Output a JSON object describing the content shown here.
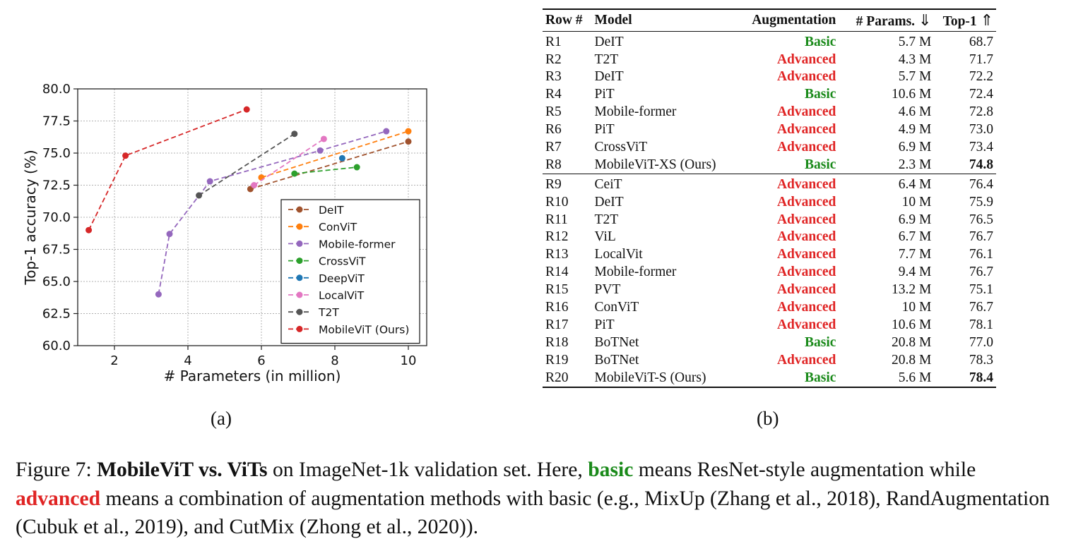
{
  "chart_data": {
    "type": "line",
    "xlabel": "# Parameters (in million)",
    "ylabel": "Top-1 accuracy (%)",
    "xlim": [
      1,
      10.5
    ],
    "ylim": [
      60,
      80
    ],
    "xticks": [
      "2",
      "4",
      "6",
      "8",
      "10"
    ],
    "yticks": [
      "60.0",
      "62.5",
      "65.0",
      "67.5",
      "70.0",
      "72.5",
      "75.0",
      "77.5",
      "80.0"
    ],
    "grid": true,
    "legend_position": "lower-right",
    "series": [
      {
        "name": "DeIT",
        "color": "#a0522d",
        "x": [
          5.7,
          10.0
        ],
        "y": [
          72.2,
          75.9
        ]
      },
      {
        "name": "ConViT",
        "color": "#ff7f0e",
        "x": [
          6.0,
          10.0
        ],
        "y": [
          73.1,
          76.7
        ]
      },
      {
        "name": "Mobile-former",
        "color": "#9467bd",
        "x": [
          3.2,
          3.5,
          4.6,
          7.6,
          9.4
        ],
        "y": [
          64.0,
          68.7,
          72.8,
          75.2,
          76.7
        ]
      },
      {
        "name": "CrossViT",
        "color": "#2ca02c",
        "x": [
          6.9,
          8.6
        ],
        "y": [
          73.4,
          73.9
        ]
      },
      {
        "name": "DeepViT",
        "color": "#1f77b4",
        "x": [
          8.2
        ],
        "y": [
          74.6
        ]
      },
      {
        "name": "LocalViT",
        "color": "#e377c2",
        "x": [
          5.8,
          7.7
        ],
        "y": [
          72.5,
          76.1
        ]
      },
      {
        "name": "T2T",
        "color": "#555555",
        "x": [
          4.3,
          6.9
        ],
        "y": [
          71.7,
          76.5
        ]
      },
      {
        "name": "MobileViT (Ours)",
        "color": "#d62728",
        "x": [
          1.3,
          2.3,
          5.6
        ],
        "y": [
          69.0,
          74.8,
          78.4
        ]
      }
    ]
  },
  "panel_labels": {
    "a": "(a)",
    "b": "(b)"
  },
  "table": {
    "headers": {
      "row": "Row #",
      "model": "Model",
      "augmentation": "Augmentation",
      "params": "# Params.",
      "params_arrow": "⇓",
      "top1": "Top-1",
      "top1_arrow": "⇑"
    },
    "colors": {
      "basic": "#1a8a1a",
      "advanced": "#e02424"
    },
    "rows": [
      {
        "row": "R1",
        "model": "DeIT",
        "aug": "Basic",
        "params": "5.7 M",
        "top1": "68.7"
      },
      {
        "row": "R2",
        "model": "T2T",
        "aug": "Advanced",
        "params": "4.3 M",
        "top1": "71.7"
      },
      {
        "row": "R3",
        "model": "DeIT",
        "aug": "Advanced",
        "params": "5.7 M",
        "top1": "72.2"
      },
      {
        "row": "R4",
        "model": "PiT",
        "aug": "Basic",
        "params": "10.6 M",
        "top1": "72.4"
      },
      {
        "row": "R5",
        "model": "Mobile-former",
        "aug": "Advanced",
        "params": "4.6 M",
        "top1": "72.8"
      },
      {
        "row": "R6",
        "model": "PiT",
        "aug": "Advanced",
        "params": "4.9 M",
        "top1": "73.0"
      },
      {
        "row": "R7",
        "model": "CrossViT",
        "aug": "Advanced",
        "params": "6.9 M",
        "top1": "73.4"
      },
      {
        "row": "R8",
        "model": "MobileViT-XS (Ours)",
        "aug": "Basic",
        "params": "2.3 M",
        "top1": "74.8",
        "bold": true
      },
      {
        "row": "R9",
        "model": "CeiT",
        "aug": "Advanced",
        "params": "6.4 M",
        "top1": "76.4"
      },
      {
        "row": "R10",
        "model": "DeIT",
        "aug": "Advanced",
        "params": "10 M",
        "top1": "75.9"
      },
      {
        "row": "R11",
        "model": "T2T",
        "aug": "Advanced",
        "params": "6.9 M",
        "top1": "76.5"
      },
      {
        "row": "R12",
        "model": "ViL",
        "aug": "Advanced",
        "params": "6.7 M",
        "top1": "76.7"
      },
      {
        "row": "R13",
        "model": "LocalVit",
        "aug": "Advanced",
        "params": "7.7 M",
        "top1": "76.1"
      },
      {
        "row": "R14",
        "model": "Mobile-former",
        "aug": "Advanced",
        "params": "9.4 M",
        "top1": "76.7"
      },
      {
        "row": "R15",
        "model": "PVT",
        "aug": "Advanced",
        "params": "13.2 M",
        "top1": "75.1"
      },
      {
        "row": "R16",
        "model": "ConViT",
        "aug": "Advanced",
        "params": "10 M",
        "top1": "76.7"
      },
      {
        "row": "R17",
        "model": "PiT",
        "aug": "Advanced",
        "params": "10.6 M",
        "top1": "78.1"
      },
      {
        "row": "R18",
        "model": "BoTNet",
        "aug": "Basic",
        "params": "20.8 M",
        "top1": "77.0"
      },
      {
        "row": "R19",
        "model": "BoTNet",
        "aug": "Advanced",
        "params": "20.8 M",
        "top1": "78.3"
      },
      {
        "row": "R20",
        "model": "MobileViT-S (Ours)",
        "aug": "Basic",
        "params": "5.6 M",
        "top1": "78.4",
        "bold": true
      }
    ]
  },
  "caption": {
    "prefix": "Figure 7: ",
    "title": "MobileViT vs. ViTs",
    "t1": " on ImageNet-1k validation set. Here, ",
    "basic": "basic",
    "t2": " means ResNet-style augmentation while ",
    "advanced": "advanced",
    "t3": " means a combination of augmentation methods with basic (e.g., MixUp (Zhang et al., 2018), RandAugmentation (Cubuk et al., 2019), and CutMix (Zhong et al., 2020))."
  }
}
